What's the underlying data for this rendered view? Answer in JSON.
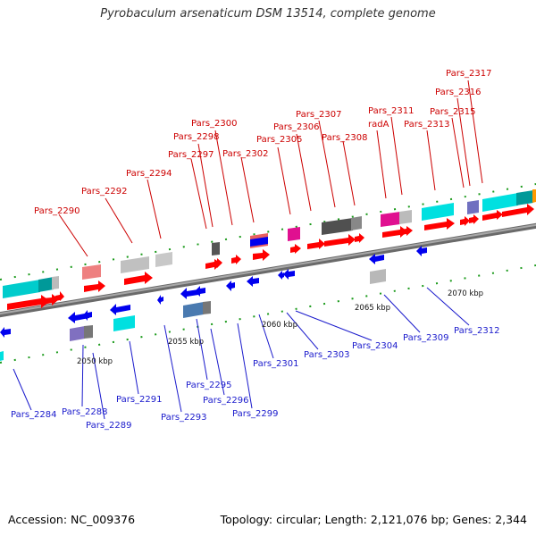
{
  "title": "Pyrobaculum arsenaticum DSM 13514, complete genome",
  "footer": {
    "accession": "Accession: NC_009376",
    "summary": "Topology: circular; Length: 2,121,076 bp; Genes: 2,344"
  },
  "colors": {
    "forward_label": "#cc0000",
    "reverse_label": "#1a1acc",
    "forward_arrow": "#ff0000",
    "reverse_arrow": "#0000ee",
    "backbone": "#808080",
    "tick": "#1a9a1a"
  },
  "forward_labels": [
    "Pars_2290",
    "Pars_2292",
    "Pars_2294",
    "Pars_2297",
    "Pars_2298",
    "Pars_2300",
    "Pars_2302",
    "Pars_2305",
    "Pars_2306",
    "Pars_2307",
    "Pars_2308",
    "radA",
    "Pars_2311",
    "Pars_2313",
    "Pars_2315",
    "Pars_2316",
    "Pars_2317"
  ],
  "reverse_labels": [
    "Pars_2284",
    "Pars_2288",
    "Pars_2289",
    "Pars_2291",
    "Pars_2293",
    "Pars_2295",
    "Pars_2296",
    "Pars_2299",
    "Pars_2301",
    "Pars_2303",
    "Pars_2304",
    "Pars_2309",
    "Pars_2312"
  ],
  "kbp_labels": [
    "2050 kbp",
    "2055 kbp",
    "2060 kbp",
    "2065 kbp",
    "2070 kbp"
  ]
}
